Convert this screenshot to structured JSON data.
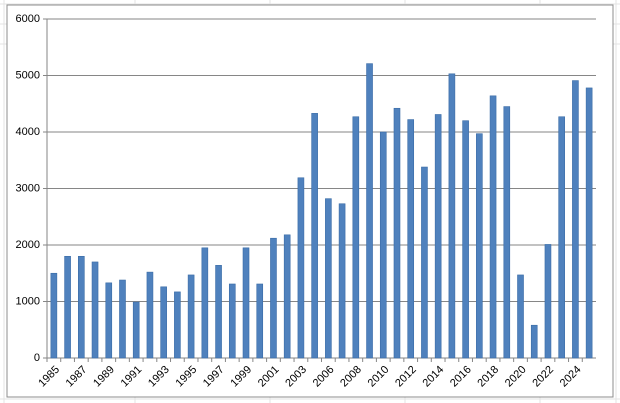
{
  "chart_data": {
    "type": "bar",
    "categories": [
      "1985",
      null,
      "1987",
      null,
      "1989",
      null,
      "1991",
      null,
      "1993",
      null,
      "1995",
      null,
      "1997",
      null,
      "1999",
      null,
      "2001",
      null,
      "2003",
      null,
      "2006",
      null,
      "2008",
      null,
      "2010",
      null,
      "2012",
      null,
      "2014",
      null,
      "2016",
      null,
      "2018",
      null,
      "2020",
      null,
      "2022",
      null,
      "2024",
      null
    ],
    "values": [
      1500,
      1800,
      1800,
      1700,
      1330,
      1380,
      990,
      1520,
      1260,
      1170,
      1470,
      1950,
      1640,
      1310,
      1950,
      1310,
      2120,
      2180,
      3190,
      4330,
      2820,
      2730,
      4270,
      5210,
      4000,
      4420,
      4220,
      3380,
      4310,
      5030,
      4200,
      3970,
      4640,
      4450,
      1470,
      580,
      2010,
      4270,
      4910,
      4780
    ],
    "color": "#4f81bd",
    "ylim": [
      0,
      6000
    ],
    "yticks": [
      0,
      1000,
      2000,
      3000,
      4000,
      5000,
      6000
    ],
    "grid": true
  }
}
